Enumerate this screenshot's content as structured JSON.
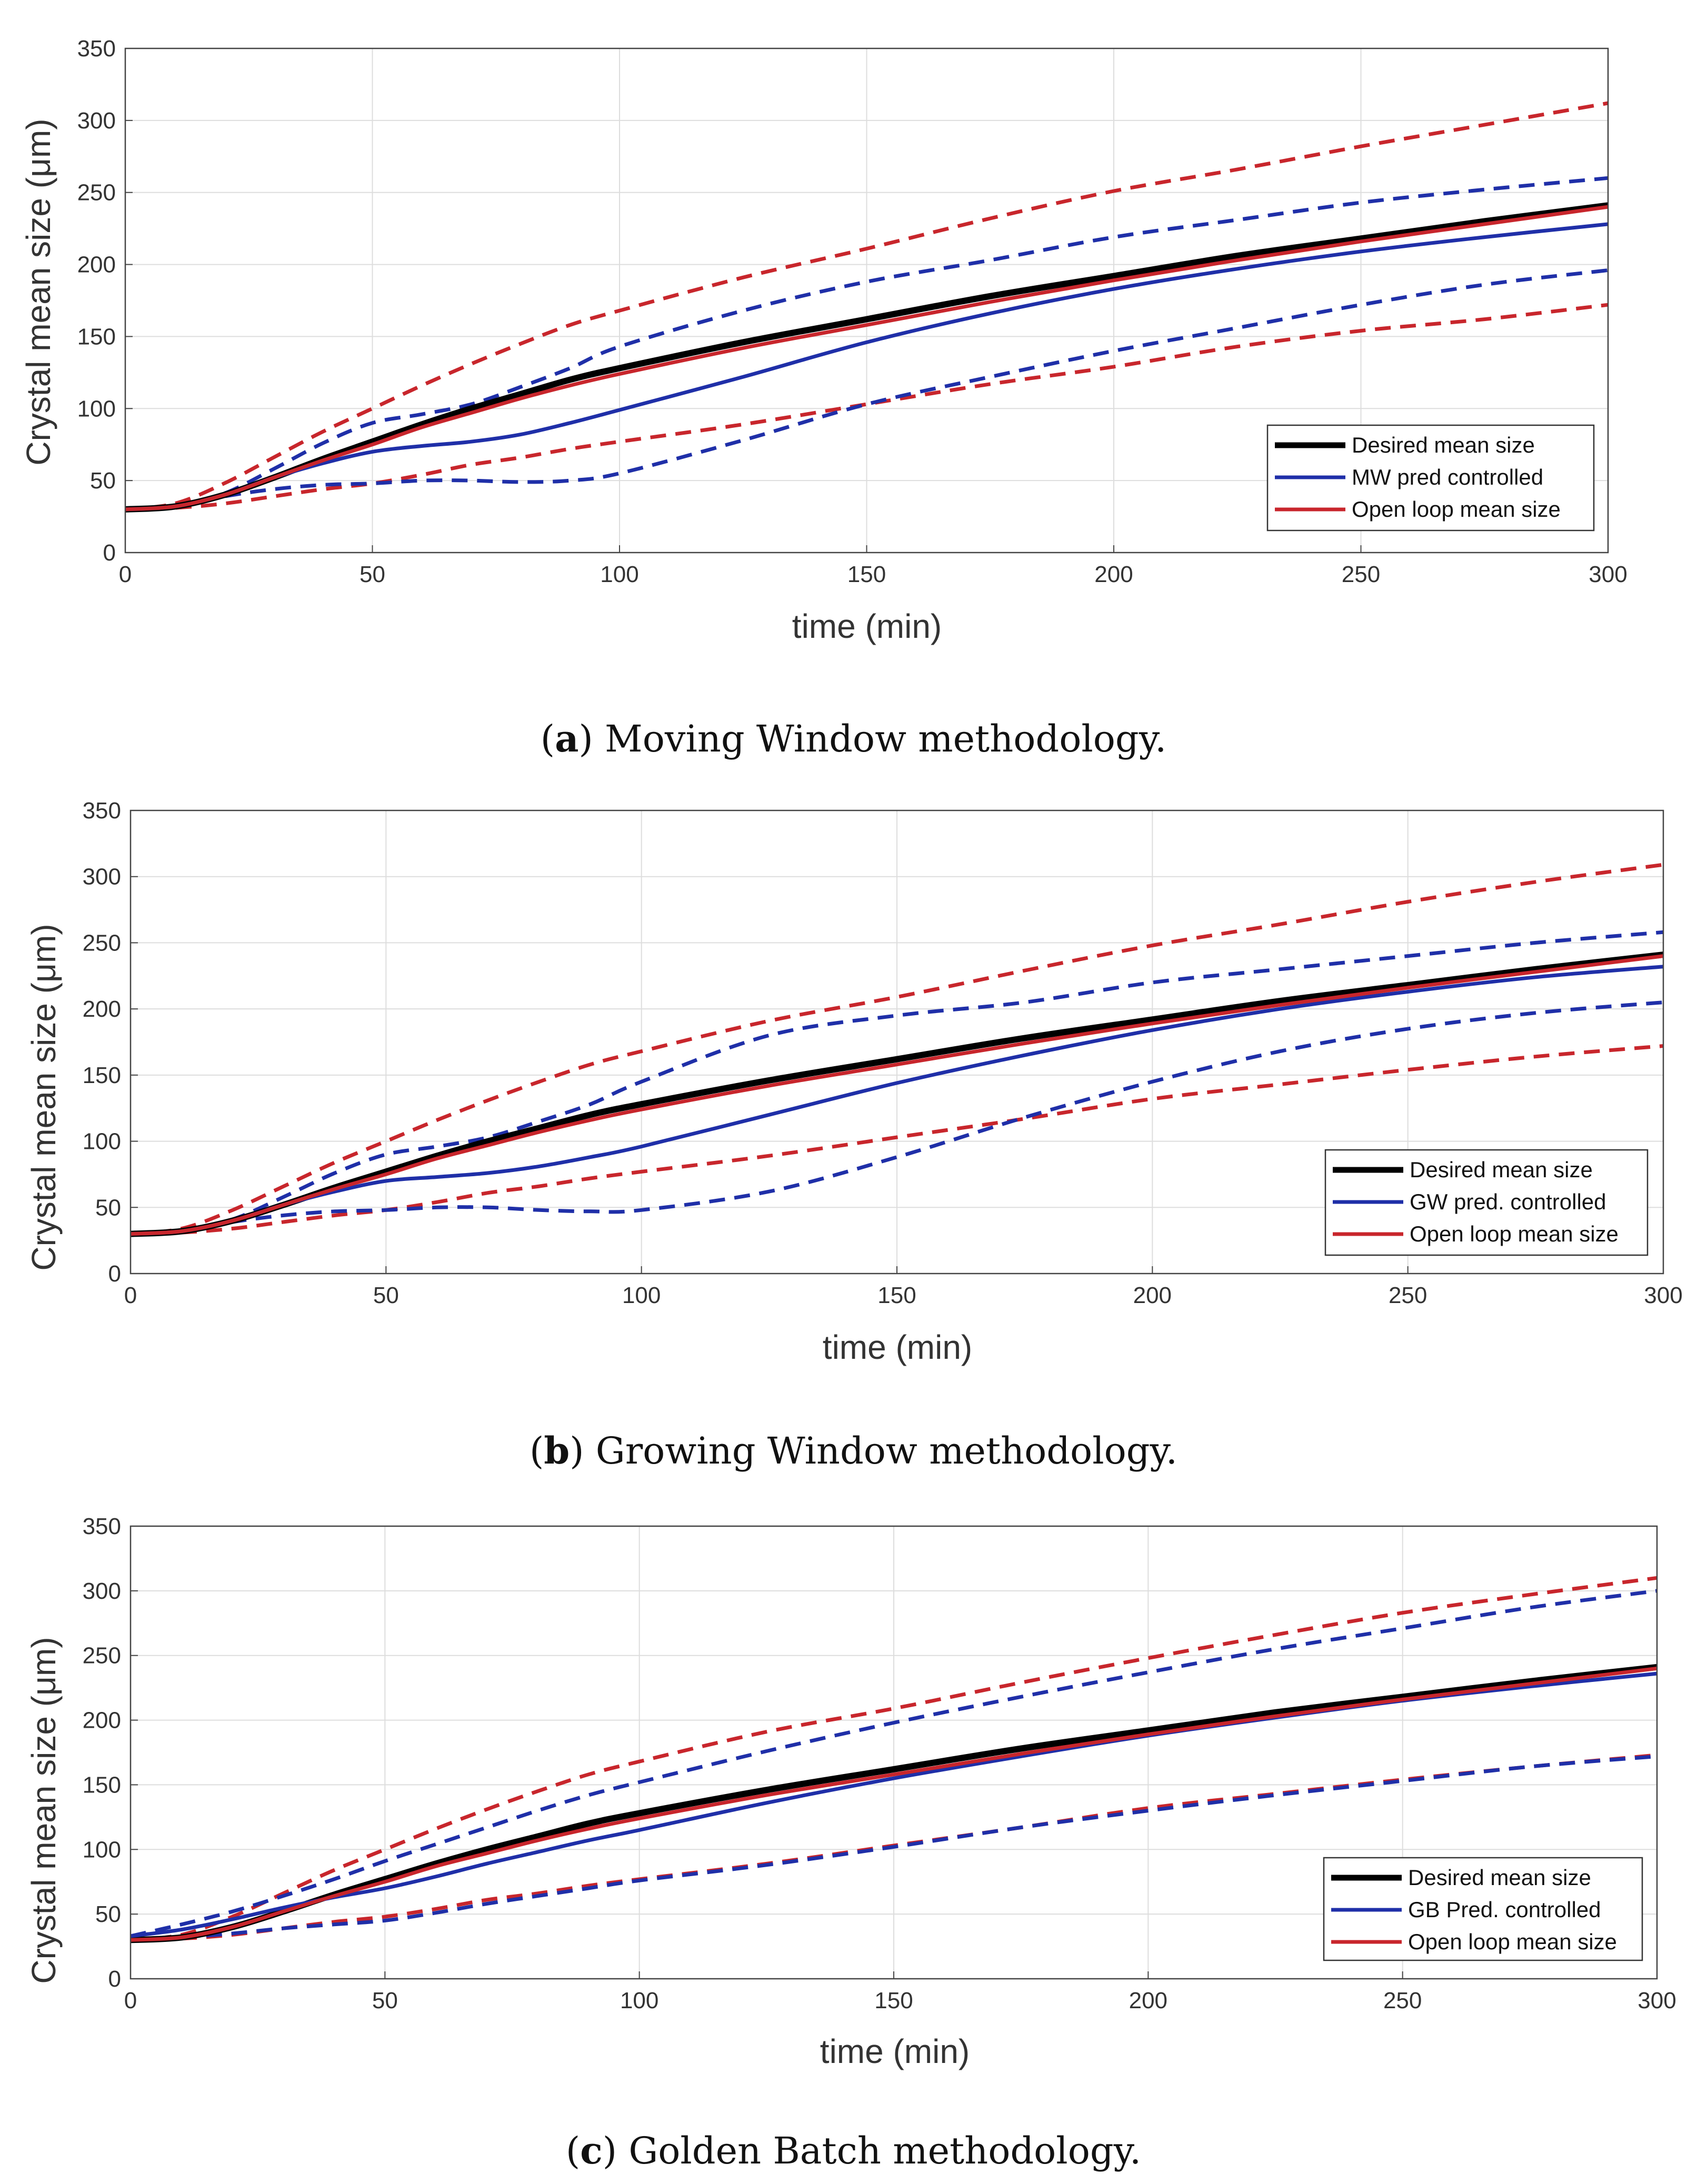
{
  "chart_data": [
    {
      "type": "line",
      "caption_letter": "a",
      "caption_text": "Moving Window methodology.",
      "xlabel": "time (min)",
      "ylabel": "Crystal mean size (μm)",
      "xlim": [
        0,
        300
      ],
      "ylim": [
        0,
        350
      ],
      "xticks": [
        0,
        50,
        100,
        150,
        200,
        250,
        300
      ],
      "yticks": [
        0,
        50,
        100,
        150,
        200,
        250,
        300,
        350
      ],
      "grid": true,
      "legend_position": "bottom-right",
      "x": [
        0,
        10,
        20,
        30,
        40,
        50,
        60,
        70,
        80,
        90,
        100,
        125,
        150,
        175,
        200,
        225,
        250,
        275,
        300
      ],
      "series": [
        {
          "name": "Desired mean size",
          "color": "#000000",
          "style": "solid",
          "in_legend": true,
          "values": [
            30,
            32,
            40,
            52,
            65,
            77,
            89,
            100,
            110,
            120,
            128,
            146,
            162,
            178,
            192,
            206,
            218,
            230,
            241
          ]
        },
        {
          "name": "MW pred controlled",
          "color": "#1f2fa8",
          "style": "solid",
          "in_legend": true,
          "values": [
            30,
            32,
            40,
            52,
            62,
            70,
            74,
            77,
            82,
            90,
            99,
            122,
            146,
            166,
            183,
            197,
            209,
            219,
            228
          ]
        },
        {
          "name": "Open loop mean size",
          "color": "#c8262c",
          "style": "solid",
          "in_legend": true,
          "values": [
            30,
            32,
            40,
            52,
            64,
            75,
            87,
            97,
            107,
            116,
            124,
            142,
            158,
            174,
            189,
            203,
            216,
            228,
            240
          ]
        },
        {
          "color": "#c8262c",
          "style": "dashed",
          "in_legend": false,
          "values": [
            30,
            34,
            48,
            66,
            84,
            100,
            116,
            131,
            145,
            158,
            168,
            191,
            211,
            232,
            251,
            266,
            282,
            297,
            312
          ]
        },
        {
          "color": "#c8262c",
          "style": "dashed",
          "in_legend": false,
          "values": [
            30,
            31,
            34,
            39,
            44,
            48,
            54,
            61,
            66,
            72,
            77,
            89,
            103,
            117,
            129,
            143,
            154,
            162,
            172
          ]
        },
        {
          "color": "#1f2fa8",
          "style": "dashed",
          "in_legend": false,
          "values": [
            30,
            32,
            41,
            58,
            76,
            90,
            96,
            103,
            115,
            128,
            143,
            168,
            188,
            203,
            219,
            231,
            243,
            252,
            260
          ]
        },
        {
          "color": "#1f2fa8",
          "style": "dashed",
          "in_legend": false,
          "values": [
            30,
            32,
            39,
            44,
            47,
            48,
            50,
            50,
            49,
            50,
            55,
            78,
            103,
            122,
            140,
            156,
            172,
            186,
            196
          ]
        }
      ]
    },
    {
      "type": "line",
      "caption_letter": "b",
      "caption_text": "Growing Window methodology.",
      "xlabel": "time (min)",
      "ylabel": "Crystal mean size (μm)",
      "xlim": [
        0,
        300
      ],
      "ylim": [
        0,
        350
      ],
      "xticks": [
        0,
        50,
        100,
        150,
        200,
        250,
        300
      ],
      "yticks": [
        0,
        50,
        100,
        150,
        200,
        250,
        300,
        350
      ],
      "grid": true,
      "legend_position": "bottom-right",
      "x": [
        0,
        10,
        20,
        30,
        40,
        50,
        60,
        70,
        80,
        90,
        100,
        125,
        150,
        175,
        200,
        225,
        250,
        275,
        300
      ],
      "series": [
        {
          "name": "Desired mean size",
          "color": "#000000",
          "style": "solid",
          "in_legend": true,
          "values": [
            30,
            32,
            40,
            52,
            65,
            77,
            89,
            100,
            110,
            120,
            128,
            146,
            162,
            178,
            192,
            206,
            218,
            230,
            241
          ]
        },
        {
          "name": "GW pred. controlled",
          "color": "#1f2fa8",
          "style": "solid",
          "in_legend": true,
          "values": [
            30,
            32,
            40,
            52,
            62,
            70,
            73,
            76,
            81,
            88,
            96,
            120,
            144,
            165,
            184,
            200,
            213,
            224,
            232
          ]
        },
        {
          "name": "Open loop mean size",
          "color": "#c8262c",
          "style": "solid",
          "in_legend": true,
          "values": [
            30,
            32,
            40,
            52,
            64,
            75,
            87,
            97,
            107,
            116,
            124,
            142,
            158,
            174,
            189,
            203,
            216,
            228,
            240
          ]
        },
        {
          "color": "#c8262c",
          "style": "dashed",
          "in_legend": false,
          "values": [
            30,
            34,
            48,
            66,
            84,
            100,
            116,
            131,
            145,
            158,
            168,
            191,
            209,
            229,
            248,
            264,
            281,
            296,
            309
          ]
        },
        {
          "color": "#c8262c",
          "style": "dashed",
          "in_legend": false,
          "values": [
            30,
            31,
            34,
            39,
            44,
            48,
            54,
            61,
            66,
            72,
            77,
            89,
            103,
            117,
            132,
            143,
            154,
            164,
            172
          ]
        },
        {
          "color": "#1f2fa8",
          "style": "dashed",
          "in_legend": false,
          "values": [
            30,
            32,
            41,
            58,
            76,
            90,
            96,
            103,
            115,
            128,
            145,
            180,
            195,
            205,
            220,
            230,
            240,
            250,
            258
          ]
        },
        {
          "color": "#1f2fa8",
          "style": "dashed",
          "in_legend": false,
          "values": [
            30,
            32,
            39,
            44,
            47,
            48,
            50,
            50,
            48,
            47,
            48,
            62,
            88,
            118,
            145,
            168,
            185,
            197,
            205
          ]
        }
      ]
    },
    {
      "type": "line",
      "caption_letter": "c",
      "caption_text": "Golden Batch methodology.",
      "xlabel": "time (min)",
      "ylabel": "Crystal mean size (μm)",
      "xlim": [
        0,
        300
      ],
      "ylim": [
        0,
        350
      ],
      "xticks": [
        0,
        50,
        100,
        150,
        200,
        250,
        300
      ],
      "yticks": [
        0,
        50,
        100,
        150,
        200,
        250,
        300,
        350
      ],
      "grid": true,
      "legend_position": "bottom-right",
      "x": [
        0,
        10,
        20,
        30,
        40,
        50,
        60,
        70,
        80,
        90,
        100,
        125,
        150,
        175,
        200,
        225,
        250,
        275,
        300
      ],
      "series": [
        {
          "name": "Desired mean size",
          "color": "#000000",
          "style": "solid",
          "in_legend": true,
          "values": [
            30,
            32,
            40,
            52,
            65,
            77,
            89,
            100,
            110,
            120,
            128,
            146,
            162,
            178,
            192,
            206,
            218,
            230,
            241
          ]
        },
        {
          "name": "GB Pred. controlled",
          "color": "#1f2fa8",
          "style": "solid",
          "in_legend": true,
          "values": [
            33,
            38,
            46,
            55,
            63,
            70,
            79,
            89,
            98,
            107,
            115,
            136,
            155,
            172,
            188,
            202,
            215,
            226,
            236
          ]
        },
        {
          "name": "Open loop mean size",
          "color": "#c8262c",
          "style": "solid",
          "in_legend": true,
          "values": [
            30,
            32,
            40,
            52,
            64,
            75,
            87,
            97,
            107,
            116,
            124,
            142,
            158,
            174,
            189,
            203,
            216,
            228,
            240
          ]
        },
        {
          "color": "#c8262c",
          "style": "dashed",
          "in_legend": false,
          "values": [
            30,
            34,
            48,
            66,
            84,
            100,
            116,
            131,
            145,
            158,
            168,
            191,
            209,
            229,
            248,
            266,
            283,
            297,
            310
          ]
        },
        {
          "color": "#c8262c",
          "style": "dashed",
          "in_legend": false,
          "values": [
            30,
            31,
            34,
            39,
            44,
            48,
            54,
            61,
            66,
            72,
            77,
            89,
            103,
            117,
            132,
            143,
            154,
            164,
            173
          ]
        },
        {
          "color": "#1f2fa8",
          "style": "dashed",
          "in_legend": false,
          "values": [
            33,
            42,
            52,
            64,
            77,
            91,
            104,
            117,
            130,
            142,
            152,
            176,
            198,
            218,
            237,
            255,
            271,
            287,
            300
          ]
        },
        {
          "color": "#1f2fa8",
          "style": "dashed",
          "in_legend": false,
          "values": [
            30,
            32,
            35,
            39,
            42,
            45,
            51,
            58,
            64,
            70,
            76,
            88,
            102,
            117,
            130,
            142,
            153,
            164,
            172
          ]
        }
      ]
    }
  ]
}
